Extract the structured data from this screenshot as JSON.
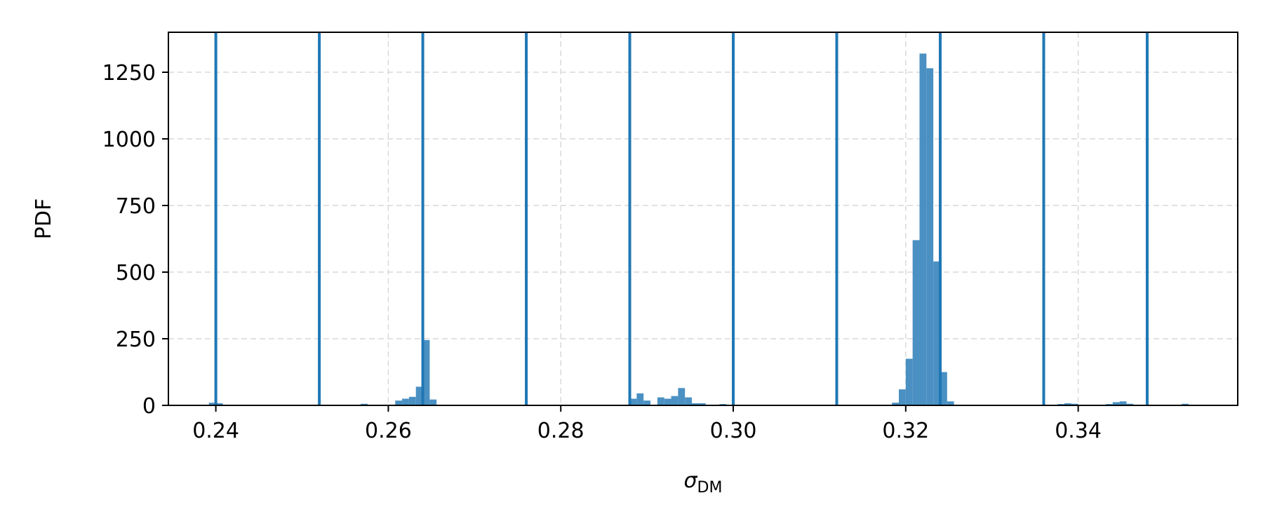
{
  "chart_data": {
    "type": "bar",
    "title": "",
    "xlabel_main": "σ",
    "xlabel_sub": "DM",
    "ylabel": "PDF",
    "xlim": [
      0.2345,
      0.3585
    ],
    "ylim": [
      0,
      1400
    ],
    "xticks": [
      0.24,
      0.26,
      0.28,
      0.3,
      0.32,
      0.34
    ],
    "xtick_labels": [
      "0.24",
      "0.26",
      "0.28",
      "0.30",
      "0.32",
      "0.34"
    ],
    "yticks": [
      0,
      250,
      500,
      750,
      1000,
      1250
    ],
    "ytick_labels": [
      "0",
      "250",
      "500",
      "750",
      "1000",
      "1250"
    ],
    "grid": true,
    "bin_width": 0.0008,
    "histogram_color": "#4a90c2",
    "vline_color": "#1f77b4",
    "bars": [
      {
        "x": 0.2396,
        "y": 10
      },
      {
        "x": 0.2404,
        "y": 8
      },
      {
        "x": 0.2572,
        "y": 6
      },
      {
        "x": 0.2612,
        "y": 18
      },
      {
        "x": 0.262,
        "y": 25
      },
      {
        "x": 0.2628,
        "y": 32
      },
      {
        "x": 0.2636,
        "y": 70
      },
      {
        "x": 0.2644,
        "y": 245
      },
      {
        "x": 0.2652,
        "y": 22
      },
      {
        "x": 0.2884,
        "y": 25
      },
      {
        "x": 0.2892,
        "y": 45
      },
      {
        "x": 0.29,
        "y": 18
      },
      {
        "x": 0.2916,
        "y": 30
      },
      {
        "x": 0.2924,
        "y": 25
      },
      {
        "x": 0.2932,
        "y": 35
      },
      {
        "x": 0.294,
        "y": 65
      },
      {
        "x": 0.2948,
        "y": 30
      },
      {
        "x": 0.2956,
        "y": 8
      },
      {
        "x": 0.2964,
        "y": 8
      },
      {
        "x": 0.2988,
        "y": 5
      },
      {
        "x": 0.3188,
        "y": 10
      },
      {
        "x": 0.3196,
        "y": 60
      },
      {
        "x": 0.3204,
        "y": 175
      },
      {
        "x": 0.3212,
        "y": 620
      },
      {
        "x": 0.322,
        "y": 1320
      },
      {
        "x": 0.3228,
        "y": 1265
      },
      {
        "x": 0.3236,
        "y": 540
      },
      {
        "x": 0.3244,
        "y": 125
      },
      {
        "x": 0.3252,
        "y": 15
      },
      {
        "x": 0.338,
        "y": 5
      },
      {
        "x": 0.3388,
        "y": 8
      },
      {
        "x": 0.3396,
        "y": 6
      },
      {
        "x": 0.3436,
        "y": 5
      },
      {
        "x": 0.3444,
        "y": 12
      },
      {
        "x": 0.3452,
        "y": 15
      },
      {
        "x": 0.346,
        "y": 6
      },
      {
        "x": 0.3524,
        "y": 6
      }
    ],
    "vlines": [
      0.24,
      0.252,
      0.264,
      0.276,
      0.288,
      0.3,
      0.312,
      0.324,
      0.336,
      0.348
    ]
  }
}
